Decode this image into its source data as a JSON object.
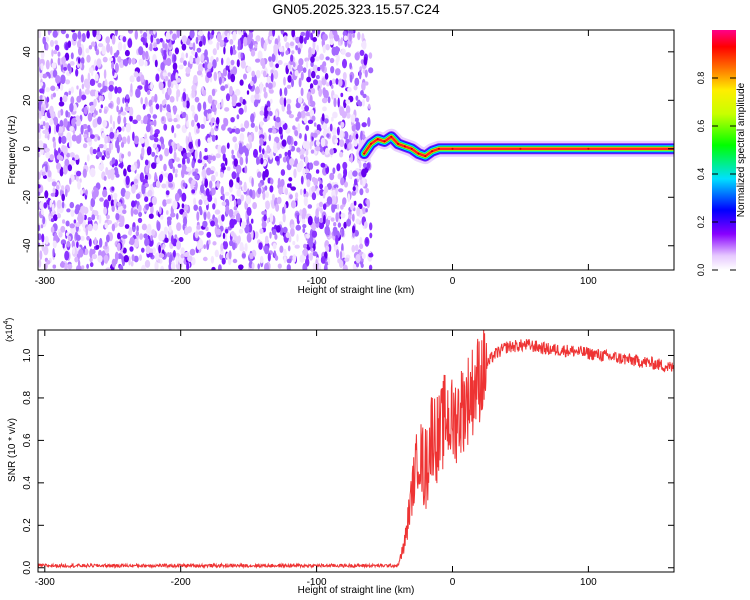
{
  "title": "GN05.2025.323.15.57.C24",
  "chart_data": [
    {
      "type": "heatmap",
      "name": "spectrogram",
      "xlabel": "Height of straight line (km)",
      "ylabel": "Frequency (Hz)",
      "xlim": [
        -305,
        163
      ],
      "ylim": [
        -50,
        49
      ],
      "xticks": [
        -300,
        -200,
        -100,
        0,
        100
      ],
      "yticks": [
        -40,
        -20,
        0,
        20,
        40
      ],
      "noise_region_x": [
        -305,
        -60
      ],
      "signal_trace": [
        {
          "x": -65,
          "y": -2
        },
        {
          "x": -60,
          "y": 2
        },
        {
          "x": -55,
          "y": 4
        },
        {
          "x": -50,
          "y": 3
        },
        {
          "x": -45,
          "y": 5
        },
        {
          "x": -40,
          "y": 2
        },
        {
          "x": -35,
          "y": 1
        },
        {
          "x": -30,
          "y": 0
        },
        {
          "x": -25,
          "y": -2
        },
        {
          "x": -20,
          "y": -3
        },
        {
          "x": -15,
          "y": -1
        },
        {
          "x": -10,
          "y": 0
        },
        {
          "x": 0,
          "y": 0
        },
        {
          "x": 50,
          "y": 0
        },
        {
          "x": 100,
          "y": 0
        },
        {
          "x": 163,
          "y": 0
        }
      ],
      "colorbar": {
        "label": "Normalized spectral amplitude",
        "range": [
          0,
          1
        ],
        "ticks": [
          "0.0",
          "0.2",
          "0.4",
          "0.6",
          "0.8"
        ],
        "tick_values": [
          0,
          0.2,
          0.4,
          0.6,
          0.8
        ]
      }
    },
    {
      "type": "line",
      "name": "snr",
      "xlabel": "Height of straight line (km)",
      "ylabel": "SNR (10 * v/v)",
      "multiplier": "(x10^4)",
      "xlim": [
        -305,
        163
      ],
      "ylim": [
        -0.02,
        1.12
      ],
      "xticks": [
        -300,
        -200,
        -100,
        0,
        100
      ],
      "yticks": [
        "0.0",
        "0.2",
        "0.4",
        "0.6",
        "0.8",
        "1.0"
      ],
      "ytick_values": [
        0,
        0.2,
        0.4,
        0.6,
        0.8,
        1.0
      ],
      "color": "#ee3333",
      "series": {
        "x": [
          -305,
          -200,
          -100,
          -40,
          -35,
          -30,
          -25,
          -20,
          -15,
          -10,
          -5,
          0,
          10,
          20,
          30,
          40,
          55,
          70,
          90,
          110,
          130,
          150,
          163
        ],
        "y": [
          0.01,
          0.01,
          0.01,
          0.01,
          0.12,
          0.35,
          0.55,
          0.45,
          0.65,
          0.6,
          0.72,
          0.68,
          0.78,
          0.9,
          1.0,
          1.04,
          1.05,
          1.03,
          1.02,
          1.0,
          0.98,
          0.96,
          0.94
        ]
      }
    }
  ]
}
